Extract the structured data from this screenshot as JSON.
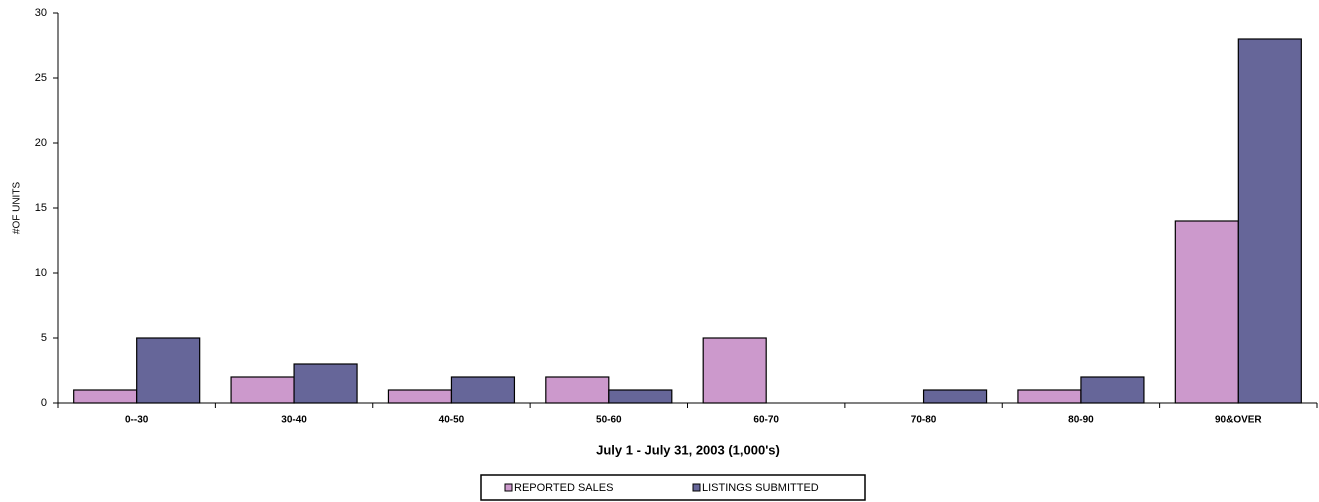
{
  "chart_data": {
    "type": "bar",
    "x_label": "July 1 - July 31, 2003 (1,000's)",
    "y_label": "#OF UNITS",
    "categories": [
      "0--30",
      "30-40",
      "40-50",
      "50-60",
      "60-70",
      "70-80",
      "80-90",
      "90&OVER"
    ],
    "series": [
      {
        "name": "REPORTED SALES",
        "color": "#cc99cc",
        "values": [
          1,
          2,
          1,
          2,
          5,
          0,
          1,
          14
        ]
      },
      {
        "name": "LISTINGS SUBMITTED",
        "color": "#666699",
        "values": [
          5,
          3,
          2,
          1,
          0,
          1,
          2,
          28
        ]
      }
    ],
    "ylim": [
      0,
      30
    ],
    "yticks": [
      0,
      5,
      10,
      15,
      20,
      25,
      30
    ],
    "grid": false,
    "legend": "bottom"
  }
}
